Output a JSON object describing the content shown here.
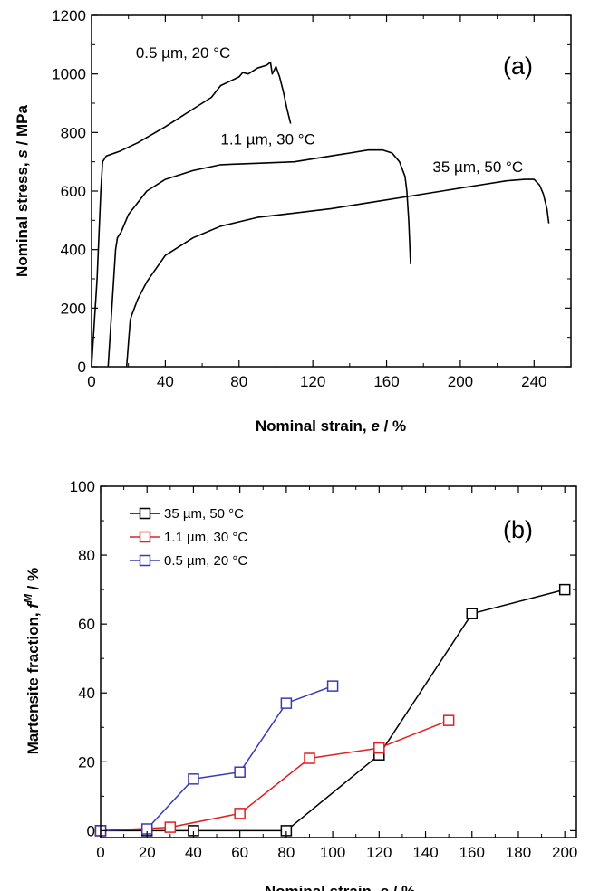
{
  "chart_data": [
    {
      "type": "line",
      "panel_label": "(a)",
      "xlabel_main": "Nominal strain, ",
      "xlabel_var": "e",
      "xlabel_unit": " / %",
      "ylabel_main": "Nominal stress, ",
      "ylabel_var": "s",
      "ylabel_unit": " / MPa",
      "xlim": [
        0,
        260
      ],
      "ylim": [
        0,
        1200
      ],
      "xticks": [
        0,
        40,
        80,
        120,
        160,
        200,
        240
      ],
      "yticks": [
        0,
        200,
        400,
        600,
        800,
        1000,
        1200
      ],
      "grid": false,
      "series": [
        {
          "name": "0.5 µm, 20 °C",
          "color": "#000000",
          "x": [
            0,
            3,
            5,
            6,
            8,
            15,
            25,
            40,
            55,
            65,
            70,
            75,
            80,
            82,
            85,
            90,
            95,
            97,
            98,
            100,
            102,
            104,
            106,
            108
          ],
          "y": [
            0,
            300,
            600,
            700,
            720,
            735,
            765,
            820,
            880,
            920,
            960,
            975,
            990,
            1005,
            1000,
            1020,
            1030,
            1040,
            1000,
            1025,
            990,
            940,
            880,
            830
          ]
        },
        {
          "name": "1.1 µm, 30 °C",
          "color": "#000000",
          "x": [
            9,
            11,
            13,
            14,
            16,
            20,
            30,
            40,
            55,
            70,
            90,
            110,
            120,
            130,
            140,
            150,
            158,
            163,
            167,
            170,
            171,
            172,
            173
          ],
          "y": [
            0,
            200,
            400,
            440,
            460,
            520,
            600,
            640,
            670,
            690,
            695,
            700,
            710,
            720,
            730,
            740,
            740,
            730,
            700,
            650,
            600,
            500,
            350
          ]
        },
        {
          "name": "35 µm, 50 °C",
          "color": "#000000",
          "x": [
            19,
            20,
            21,
            22,
            25,
            30,
            40,
            55,
            70,
            90,
            110,
            130,
            150,
            170,
            190,
            210,
            225,
            235,
            240,
            243,
            245,
            247,
            248
          ],
          "y": [
            0,
            80,
            160,
            180,
            230,
            290,
            380,
            440,
            480,
            510,
            525,
            540,
            560,
            580,
            600,
            620,
            635,
            640,
            640,
            620,
            590,
            540,
            490
          ]
        }
      ],
      "annotations": [
        {
          "text": "0.5 µm, 20 °C",
          "x": 24,
          "y": 1055
        },
        {
          "text": "1.1 µm, 30 °C",
          "x": 70,
          "y": 760
        },
        {
          "text": "35 µm, 50 °C",
          "x": 185,
          "y": 665
        }
      ]
    },
    {
      "type": "line",
      "panel_label": "(b)",
      "xlabel_main": "Nominal strain, ",
      "xlabel_var": "e",
      "xlabel_unit": " / %",
      "ylabel_main": "Martensite fraction, ",
      "ylabel_var": "f",
      "ylabel_sup": "M",
      "ylabel_unit": " / %",
      "xlim": [
        0,
        205
      ],
      "ylim": [
        -2,
        100
      ],
      "xticks": [
        0,
        20,
        40,
        60,
        80,
        100,
        120,
        140,
        160,
        180,
        200
      ],
      "yticks": [
        0,
        20,
        40,
        60,
        80,
        100
      ],
      "grid": false,
      "legend_position": "top-left",
      "series": [
        {
          "name": "35 µm, 50 °C",
          "color": "#000000",
          "x": [
            0,
            20,
            40,
            80,
            120,
            160,
            200
          ],
          "y": [
            0,
            0,
            0,
            0,
            22,
            63,
            70
          ]
        },
        {
          "name": "1.1 µm, 30 °C",
          "color": "#e02020",
          "x": [
            0,
            30,
            60,
            90,
            120,
            150
          ],
          "y": [
            0,
            1,
            5,
            21,
            24,
            32
          ]
        },
        {
          "name": "0.5 µm, 20 °C",
          "color": "#3a3ab8",
          "x": [
            0,
            20,
            40,
            60,
            80,
            100
          ],
          "y": [
            0,
            0.5,
            15,
            17,
            37,
            42
          ]
        }
      ]
    }
  ]
}
